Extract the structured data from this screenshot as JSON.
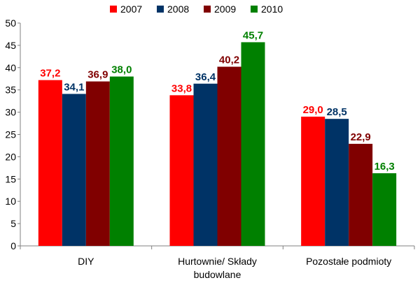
{
  "chart_data": {
    "type": "bar",
    "categories": [
      "DIY",
      "Hurtownie/ Składy budowlane",
      "Pozostałe podmioty"
    ],
    "category_lines": [
      [
        "DIY"
      ],
      [
        "Hurtownie/ Składy",
        "budowlane"
      ],
      [
        "Pozostałe podmioty"
      ]
    ],
    "series": [
      {
        "name": "2007",
        "color": "#ff0000",
        "values": [
          37.2,
          33.8,
          29.0
        ],
        "labels": [
          "37,2",
          "33,8",
          "29,0"
        ]
      },
      {
        "name": "2008",
        "color": "#003366",
        "values": [
          34.1,
          36.4,
          28.5
        ],
        "labels": [
          "34,1",
          "36,4",
          "28,5"
        ]
      },
      {
        "name": "2009",
        "color": "#800000",
        "values": [
          36.9,
          40.2,
          22.9
        ],
        "labels": [
          "36,9",
          "40,2",
          "22,9"
        ]
      },
      {
        "name": "2010",
        "color": "#008000",
        "values": [
          38.0,
          45.7,
          16.3
        ],
        "labels": [
          "38,0",
          "45,7",
          "16,3"
        ]
      }
    ],
    "ylim": [
      0,
      50
    ],
    "yticks": [
      "0",
      "5",
      "10",
      "15",
      "20",
      "25",
      "30",
      "35",
      "40",
      "45",
      "50"
    ],
    "grid": false,
    "legend_position": "top-center",
    "xlabel": "",
    "ylabel": "",
    "title": ""
  }
}
